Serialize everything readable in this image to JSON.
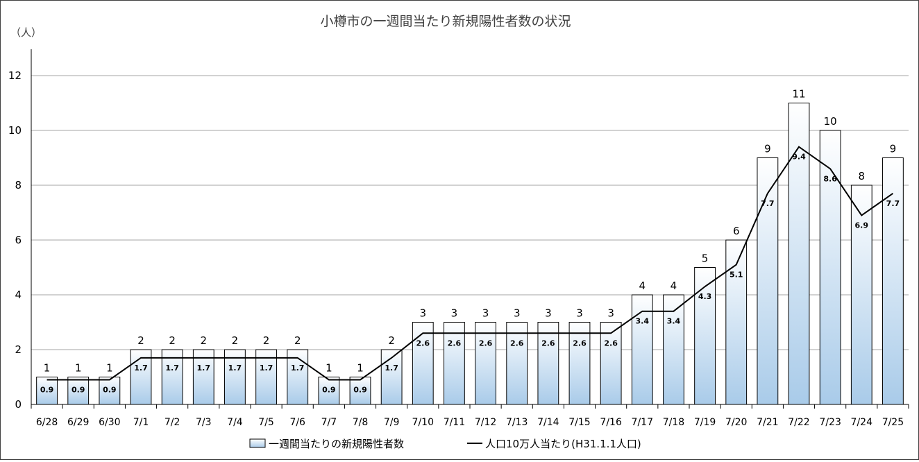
{
  "chart_data": {
    "type": "bar",
    "title": "小樽市の一週間当たり新規陽性者数の状況",
    "yunit": "（人）",
    "ylim": [
      0,
      12
    ],
    "yticks": [
      0,
      2,
      4,
      6,
      8,
      10,
      12
    ],
    "grid": true,
    "legend_placement": "bottom",
    "categories": [
      "6/28",
      "6/29",
      "6/30",
      "7/1",
      "7/2",
      "7/3",
      "7/4",
      "7/5",
      "7/6",
      "7/7",
      "7/8",
      "7/9",
      "7/10",
      "7/11",
      "7/12",
      "7/13",
      "7/14",
      "7/15",
      "7/16",
      "7/17",
      "7/18",
      "7/19",
      "7/20",
      "7/21",
      "7/22",
      "7/23",
      "7/24",
      "7/25"
    ],
    "series": [
      {
        "name": "一週間当たりの新規陽性者数",
        "type": "bar",
        "values": [
          1,
          1,
          1,
          2,
          2,
          2,
          2,
          2,
          2,
          1,
          1,
          2,
          3,
          3,
          3,
          3,
          3,
          3,
          3,
          4,
          4,
          5,
          6,
          9,
          11,
          10,
          8,
          9
        ],
        "color": "#b8d4ee"
      },
      {
        "name": "人口10万人当たり(H31.1.1人口)",
        "type": "line",
        "values": [
          0.9,
          0.9,
          0.9,
          1.7,
          1.7,
          1.7,
          1.7,
          1.7,
          1.7,
          0.9,
          0.9,
          1.7,
          2.6,
          2.6,
          2.6,
          2.6,
          2.6,
          2.6,
          2.6,
          3.4,
          3.4,
          4.3,
          5.1,
          7.7,
          9.4,
          8.6,
          6.9,
          7.7
        ],
        "color": "#000000"
      }
    ]
  }
}
